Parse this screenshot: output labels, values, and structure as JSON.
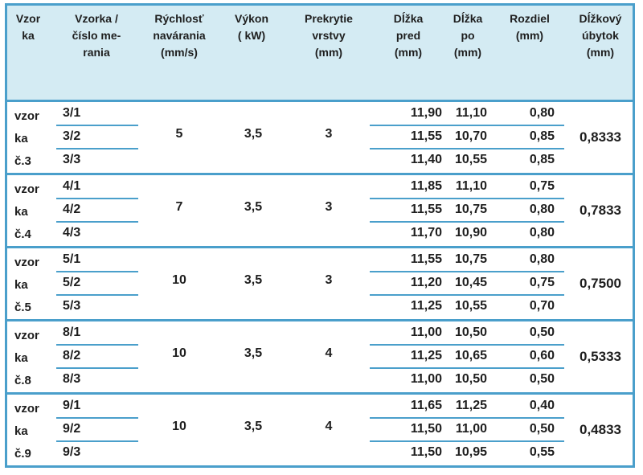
{
  "table": {
    "headers": [
      "Vzor\nka",
      "Vzorka /\nčíslo me-\nrania",
      "Rýchlosť\nnavárania\n(mm/s)",
      "Výkon\n( kW)",
      "Prekrytie\nvrstvy\n(mm)",
      "Dĺžka\npred\n(mm)",
      "Dĺžka\npo\n(mm)",
      "Rozdiel\n(mm)",
      "Dĺžkový\núbytok\n(mm)"
    ],
    "groups": [
      {
        "label": "vzor\nka\nč.3",
        "speed": "5",
        "power": "3,5",
        "overlap": "3",
        "avg": "0,8333",
        "rows": [
          {
            "id": "3/1",
            "before": "11,90",
            "after": "11,10",
            "diff": "0,80"
          },
          {
            "id": "3/2",
            "before": "11,55",
            "after": "10,70",
            "diff": "0,85"
          },
          {
            "id": "3/3",
            "before": "11,40",
            "after": "10,55",
            "diff": "0,85"
          }
        ]
      },
      {
        "label": "vzor\nka\nč.4",
        "speed": "7",
        "power": "3,5",
        "overlap": "3",
        "avg": "0,7833",
        "rows": [
          {
            "id": "4/1",
            "before": "11,85",
            "after": "11,10",
            "diff": "0,75"
          },
          {
            "id": "4/2",
            "before": "11,55",
            "after": "10,75",
            "diff": "0,80"
          },
          {
            "id": "4/3",
            "before": "11,70",
            "after": "10,90",
            "diff": "0,80"
          }
        ]
      },
      {
        "label": "vzor\nka\nč.5",
        "speed": "10",
        "power": "3,5",
        "overlap": "3",
        "avg": "0,7500",
        "rows": [
          {
            "id": "5/1",
            "before": "11,55",
            "after": "10,75",
            "diff": "0,80"
          },
          {
            "id": "5/2",
            "before": "11,20",
            "after": "10,45",
            "diff": "0,75"
          },
          {
            "id": "5/3",
            "before": "11,25",
            "after": "10,55",
            "diff": "0,70"
          }
        ]
      },
      {
        "label": "vzor\nka\nč.8",
        "speed": "10",
        "power": "3,5",
        "overlap": "4",
        "avg": "0,5333",
        "rows": [
          {
            "id": "8/1",
            "before": "11,00",
            "after": "10,50",
            "diff": "0,50"
          },
          {
            "id": "8/2",
            "before": "11,25",
            "after": "10,65",
            "diff": "0,60"
          },
          {
            "id": "8/3",
            "before": "11,00",
            "after": "10,50",
            "diff": "0,50"
          }
        ]
      },
      {
        "label": "vzor\nka\nč.9",
        "speed": "10",
        "power": "3,5",
        "overlap": "4",
        "avg": "0,4833",
        "rows": [
          {
            "id": "9/1",
            "before": "11,65",
            "after": "11,25",
            "diff": "0,40"
          },
          {
            "id": "9/2",
            "before": "11,50",
            "after": "11,00",
            "diff": "0,50"
          },
          {
            "id": "9/3",
            "before": "11,50",
            "after": "10,95",
            "diff": "0,55"
          }
        ]
      }
    ]
  }
}
